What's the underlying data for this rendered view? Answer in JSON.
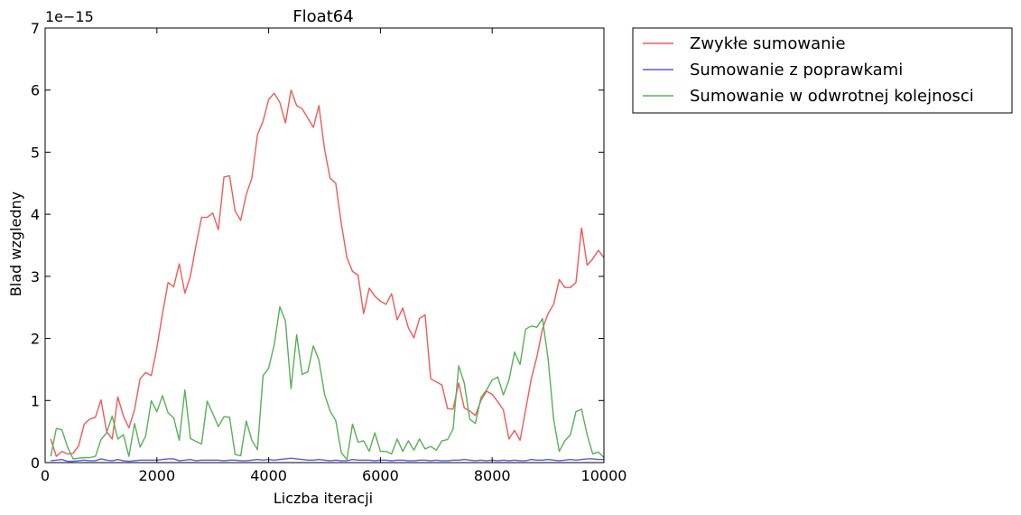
{
  "chart_data": {
    "type": "line",
    "title": "Float64",
    "xlabel": "Liczba iteracji",
    "ylabel": "Blad wzgledny",
    "y_offset_label": "1e−15",
    "xlim": [
      0,
      10000
    ],
    "ylim": [
      0,
      7
    ],
    "xticks": [
      0,
      2000,
      4000,
      6000,
      8000,
      10000
    ],
    "yticks": [
      0,
      1,
      2,
      3,
      4,
      5,
      6,
      7
    ],
    "grid": false,
    "legend_position": "outside-top-right",
    "x_values_note": "x = 100, 200, ..., 10000",
    "series": [
      {
        "name": "Zwykłe sumowanie",
        "color": "#f05a5a",
        "values": [
          0.38,
          0.1,
          0.18,
          0.14,
          0.15,
          0.27,
          0.62,
          0.7,
          0.73,
          1.01,
          0.5,
          0.38,
          1.06,
          0.75,
          0.56,
          0.85,
          1.35,
          1.45,
          1.4,
          1.85,
          2.4,
          2.9,
          2.83,
          3.2,
          2.73,
          3.0,
          3.5,
          3.95,
          3.95,
          4.02,
          3.75,
          4.6,
          4.62,
          4.05,
          3.9,
          4.32,
          4.58,
          5.28,
          5.5,
          5.85,
          5.95,
          5.8,
          5.47,
          6.0,
          5.75,
          5.7,
          5.55,
          5.4,
          5.75,
          5.05,
          4.58,
          4.5,
          3.85,
          3.3,
          3.08,
          3.02,
          2.4,
          2.81,
          2.68,
          2.6,
          2.55,
          2.72,
          2.3,
          2.49,
          2.17,
          2.01,
          2.32,
          2.38,
          1.35,
          1.3,
          1.25,
          0.87,
          0.86,
          1.28,
          0.88,
          0.83,
          0.76,
          1.0,
          1.15,
          1.1,
          0.98,
          0.85,
          0.38,
          0.52,
          0.36,
          0.85,
          1.35,
          1.7,
          2.15,
          2.4,
          2.55,
          2.95,
          2.82,
          2.82,
          2.9,
          3.78,
          3.18,
          3.28,
          3.42,
          3.3
        ]
      },
      {
        "name": "Sumowanie z poprawkami",
        "color": "#5a5af0",
        "values": [
          0.03,
          0.04,
          0.05,
          0.02,
          0.02,
          0.03,
          0.04,
          0.03,
          0.03,
          0.06,
          0.04,
          0.03,
          0.05,
          0.03,
          0.02,
          0.03,
          0.04,
          0.04,
          0.04,
          0.04,
          0.05,
          0.06,
          0.06,
          0.03,
          0.04,
          0.05,
          0.03,
          0.04,
          0.04,
          0.04,
          0.04,
          0.03,
          0.04,
          0.04,
          0.03,
          0.03,
          0.04,
          0.05,
          0.04,
          0.05,
          0.04,
          0.05,
          0.06,
          0.07,
          0.06,
          0.05,
          0.04,
          0.04,
          0.05,
          0.04,
          0.03,
          0.04,
          0.03,
          0.03,
          0.05,
          0.04,
          0.04,
          0.04,
          0.03,
          0.04,
          0.04,
          0.03,
          0.04,
          0.04,
          0.03,
          0.03,
          0.04,
          0.04,
          0.03,
          0.04,
          0.03,
          0.03,
          0.04,
          0.04,
          0.05,
          0.04,
          0.03,
          0.04,
          0.03,
          0.04,
          0.03,
          0.04,
          0.03,
          0.04,
          0.03,
          0.03,
          0.05,
          0.04,
          0.04,
          0.05,
          0.04,
          0.03,
          0.04,
          0.05,
          0.04,
          0.05,
          0.06,
          0.06,
          0.05,
          0.05
        ]
      },
      {
        "name": "Sumowanie w odwrotnej kolejnosci",
        "color": "#5aaf5a",
        "values": [
          0.1,
          0.55,
          0.53,
          0.25,
          0.06,
          0.07,
          0.08,
          0.08,
          0.1,
          0.37,
          0.48,
          0.75,
          0.38,
          0.45,
          0.1,
          0.63,
          0.25,
          0.43,
          1.0,
          0.82,
          1.08,
          0.8,
          0.72,
          0.36,
          1.17,
          0.39,
          0.34,
          0.3,
          0.99,
          0.79,
          0.58,
          0.74,
          0.73,
          0.13,
          0.11,
          0.67,
          0.36,
          0.21,
          1.4,
          1.52,
          1.9,
          2.51,
          2.28,
          1.19,
          2.06,
          1.42,
          1.46,
          1.88,
          1.65,
          1.1,
          0.83,
          0.68,
          0.16,
          0.05,
          0.62,
          0.33,
          0.35,
          0.18,
          0.48,
          0.18,
          0.18,
          0.14,
          0.38,
          0.18,
          0.35,
          0.2,
          0.38,
          0.22,
          0.26,
          0.2,
          0.35,
          0.37,
          0.54,
          1.56,
          1.28,
          0.7,
          0.63,
          1.05,
          1.17,
          1.33,
          1.38,
          1.09,
          1.33,
          1.78,
          1.58,
          2.15,
          2.2,
          2.18,
          2.32,
          1.68,
          0.7,
          0.18,
          0.35,
          0.45,
          0.82,
          0.86,
          0.45,
          0.14,
          0.17,
          0.08
        ]
      }
    ]
  }
}
